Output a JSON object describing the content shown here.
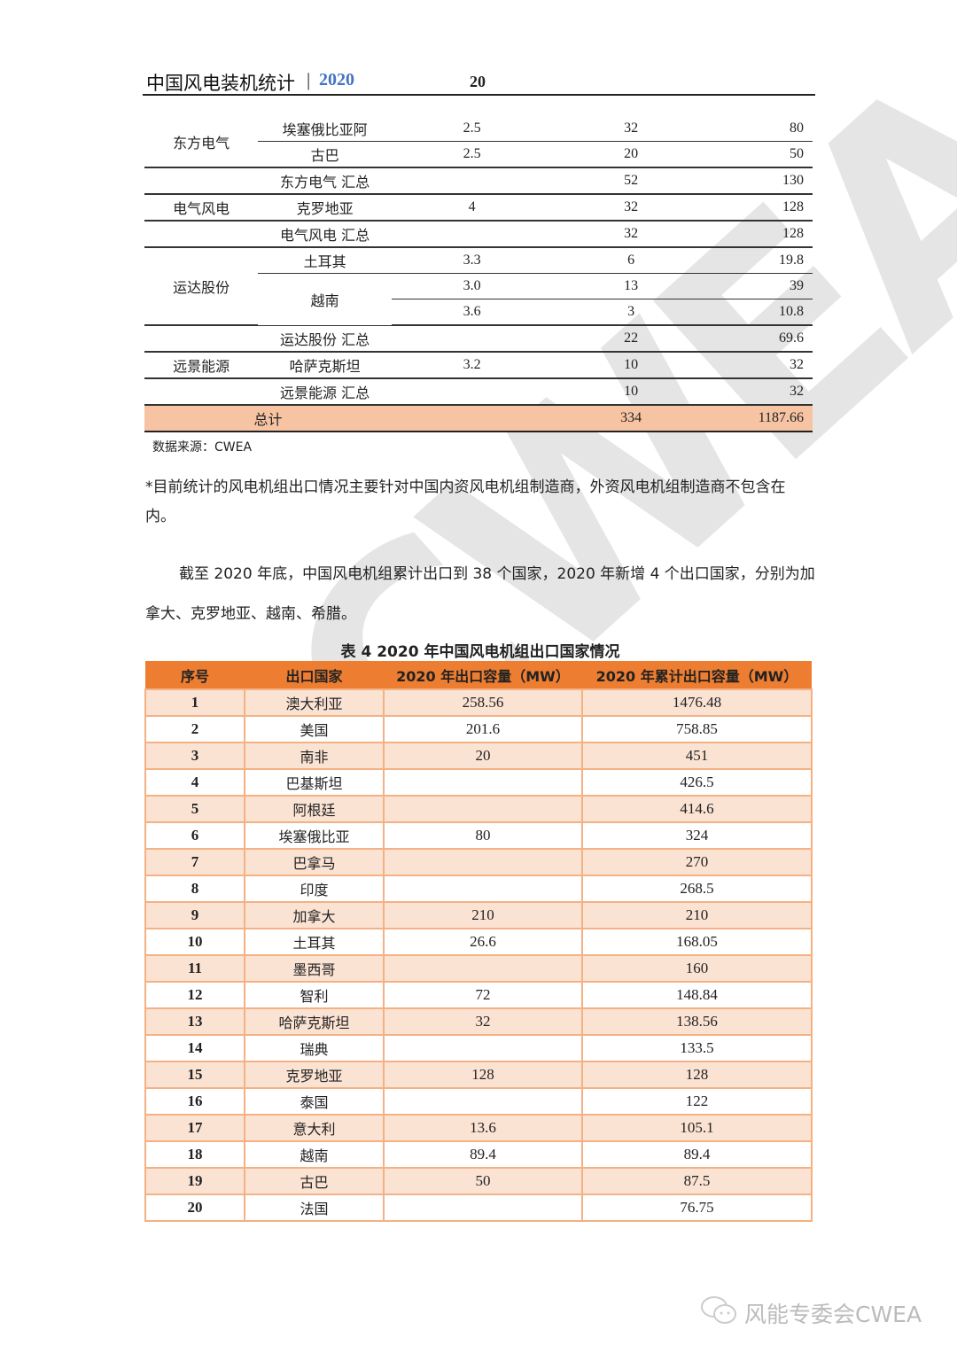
{
  "header": {
    "title": "中国风电装机统计",
    "separator": "|",
    "year": "2020",
    "page": "20"
  },
  "table1": {
    "rows": [
      [
        "东方电气",
        "埃塞俄比亚阿",
        "2.5",
        "32",
        "80"
      ],
      [
        "",
        "古巴",
        "2.5",
        "20",
        "50"
      ],
      [
        "",
        "东方电气 汇总",
        "",
        "52",
        "130"
      ],
      [
        "电气风电",
        "克罗地亚",
        "4",
        "32",
        "128"
      ],
      [
        "",
        "电气风电 汇总",
        "",
        "32",
        "128"
      ],
      [
        "运达股份",
        "土耳其",
        "3.3",
        "6",
        "19.8"
      ],
      [
        "",
        "越南",
        "3.0",
        "13",
        "39"
      ],
      [
        "",
        "",
        "3.6",
        "3",
        "10.8"
      ],
      [
        "",
        "运达股份 汇总",
        "",
        "22",
        "69.6"
      ],
      [
        "远景能源",
        "哈萨克斯坦",
        "3.2",
        "10",
        "32"
      ],
      [
        "",
        "远景能源 汇总",
        "",
        "10",
        "32"
      ]
    ],
    "total": {
      "label": "总计",
      "units": "334",
      "capacity": "1187.66"
    },
    "total_color": "#F7C4A3"
  },
  "source": "数据来源：CWEA",
  "note": "*目前统计的风电机组出口情况主要针对中国内资风电机组制造商，外资风电机组制造商不包含在内。",
  "paragraph": "截至 2020 年底，中国风电机组累计出口到 38 个国家，2020 年新增 4 个出口国家，分别为加拿大、克罗地亚、越南、希腊。",
  "table2": {
    "caption": "表 4   2020 年中国风电机组出口国家情况",
    "headers": [
      "序号",
      "出口国家",
      "2020 年出口容量（MW）",
      "2020 年累计出口容量（MW）"
    ],
    "header_color": "#ED7D31",
    "row_color": "#FBE3D3",
    "rows": [
      [
        "1",
        "澳大利亚",
        "258.56",
        "1476.48"
      ],
      [
        "2",
        "美国",
        "201.6",
        "758.85"
      ],
      [
        "3",
        "南非",
        "20",
        "451"
      ],
      [
        "4",
        "巴基斯坦",
        "",
        "426.5"
      ],
      [
        "5",
        "阿根廷",
        "",
        "414.6"
      ],
      [
        "6",
        "埃塞俄比亚",
        "80",
        "324"
      ],
      [
        "7",
        "巴拿马",
        "",
        "270"
      ],
      [
        "8",
        "印度",
        "",
        "268.5"
      ],
      [
        "9",
        "加拿大",
        "210",
        "210"
      ],
      [
        "10",
        "土耳其",
        "26.6",
        "168.05"
      ],
      [
        "11",
        "墨西哥",
        "",
        "160"
      ],
      [
        "12",
        "智利",
        "72",
        "148.84"
      ],
      [
        "13",
        "哈萨克斯坦",
        "32",
        "138.56"
      ],
      [
        "14",
        "瑞典",
        "",
        "133.5"
      ],
      [
        "15",
        "克罗地亚",
        "128",
        "128"
      ],
      [
        "16",
        "泰国",
        "",
        "122"
      ],
      [
        "17",
        "意大利",
        "13.6",
        "105.1"
      ],
      [
        "18",
        "越南",
        "89.4",
        "89.4"
      ],
      [
        "19",
        "古巴",
        "50",
        "87.5"
      ],
      [
        "20",
        "法国",
        "",
        "76.75"
      ]
    ]
  },
  "watermark": "CWEA",
  "footer": {
    "icon": "wechat-icon",
    "text": "风能专委会CWEA"
  }
}
